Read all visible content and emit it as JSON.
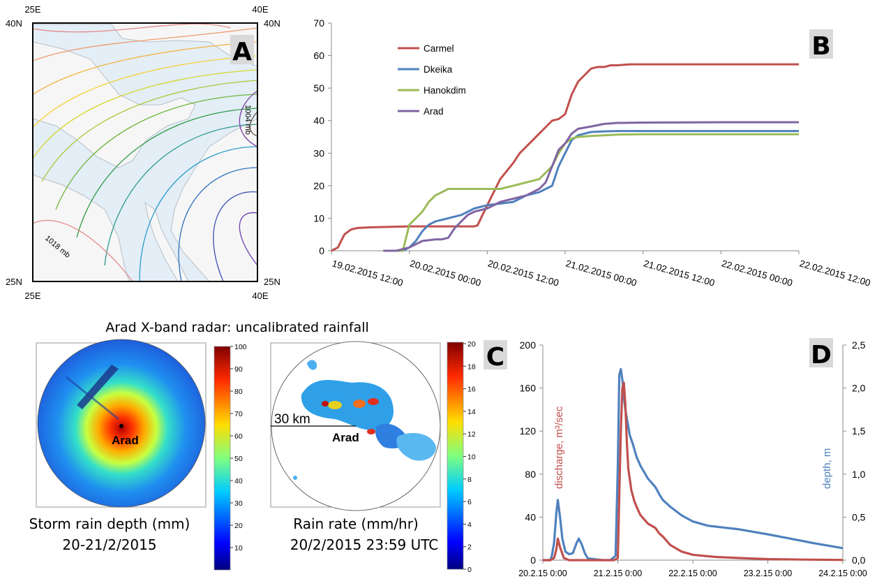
{
  "panelA": {
    "letter": "A",
    "corner_labels": {
      "tl_top": "25E",
      "tr_top": "40E",
      "tl_left": "40N",
      "tr_right": "40N",
      "bl_left": "25N",
      "br_right": "25N",
      "bl_bottom": "25E",
      "br_bottom": "40E"
    },
    "contour_labels": [
      "1004 mb",
      "1018 mb"
    ],
    "colors": {
      "land": "#e3eef7",
      "sea": "#f6f6f6",
      "frame": "#000000"
    }
  },
  "chart_data": [
    {
      "id": "B",
      "type": "line",
      "title": "",
      "xlabel": "",
      "ylabel": "",
      "ylim": [
        0,
        70
      ],
      "yticks": [
        "0",
        "10",
        "20",
        "30",
        "40",
        "50",
        "60",
        "70"
      ],
      "xticks": [
        "19.02.2015 12:00",
        "20.02.2015 00:00",
        "20.02.2015 12:00",
        "21.02.2015 00:00",
        "21.02.2015 12:00",
        "22.02.2015 00:00",
        "22.02.2015 12:00"
      ],
      "legend_position": "top-left",
      "series": [
        {
          "name": "Carmel",
          "color": "#c0504d",
          "x_hours": [
            0,
            1,
            2,
            3,
            4,
            6,
            8,
            12,
            16,
            18,
            20,
            22,
            22.5,
            24,
            26,
            28,
            29,
            30,
            31,
            32,
            33,
            34,
            35,
            36,
            37,
            38,
            39,
            40,
            41,
            42,
            43,
            44,
            46,
            48,
            52,
            60,
            72
          ],
          "values": [
            0,
            1,
            5,
            6.5,
            7,
            7.2,
            7.3,
            7.5,
            7.5,
            7.5,
            7.5,
            7.5,
            7.8,
            14,
            22,
            27,
            30,
            32,
            34,
            36,
            38,
            40,
            40.5,
            42,
            48,
            52,
            54,
            56,
            56.5,
            56.5,
            57,
            57,
            57.3,
            57.3,
            57.3,
            57.3,
            57.3
          ]
        },
        {
          "name": "Dkeika",
          "color": "#4f81bd",
          "x_hours": [
            8,
            10,
            11,
            12,
            13,
            14,
            15,
            16,
            18,
            20,
            22,
            24,
            26,
            28,
            29,
            30,
            32,
            33,
            34,
            35,
            36,
            37,
            38,
            39,
            40,
            42,
            44,
            46,
            48,
            52,
            60,
            72
          ],
          "values": [
            0,
            0,
            0,
            1,
            3,
            6,
            8,
            9,
            10,
            11,
            13,
            14,
            14.5,
            15,
            16,
            17,
            18,
            19,
            20,
            26,
            30,
            34,
            35.5,
            36,
            36.5,
            36.7,
            36.8,
            36.8,
            36.8,
            36.8,
            36.8,
            36.8
          ]
        },
        {
          "name": "Hanokdim",
          "color": "#9bbb59",
          "x_hours": [
            8,
            10,
            11,
            12,
            13,
            14,
            15,
            16,
            17,
            18,
            20,
            22,
            24,
            26,
            28,
            30,
            32,
            33,
            34,
            35,
            36,
            37,
            38,
            40,
            42,
            44,
            48,
            60,
            72
          ],
          "values": [
            0,
            0,
            0,
            8,
            10,
            12,
            15,
            17,
            18,
            19,
            19,
            19,
            19,
            19,
            20,
            21,
            22,
            24,
            26,
            30,
            33,
            34.5,
            35,
            35.3,
            35.5,
            35.7,
            35.8,
            35.8,
            35.8
          ]
        },
        {
          "name": "Arad",
          "color": "#8064a2",
          "x_hours": [
            8,
            10,
            12,
            14,
            16,
            17,
            18,
            19,
            20,
            21,
            22,
            24,
            26,
            28,
            30,
            32,
            33,
            34,
            35,
            36,
            37,
            38,
            40,
            42,
            44,
            48,
            60,
            72
          ],
          "values": [
            0,
            0,
            1,
            3,
            3.5,
            3.5,
            4,
            7,
            9,
            11,
            12,
            13,
            15,
            16,
            17,
            19,
            21,
            26,
            31,
            33,
            36,
            37.5,
            38.2,
            39,
            39.3,
            39.4,
            39.5,
            39.5
          ]
        }
      ]
    },
    {
      "id": "D",
      "type": "line",
      "title": "",
      "xlabel": "",
      "ylabel": "discharge, m³/sec",
      "y2label": "depth, m",
      "ylim": [
        0,
        200
      ],
      "y2lim": [
        0,
        2.5
      ],
      "yticks": [
        "0",
        "40",
        "80",
        "120",
        "160",
        "200"
      ],
      "y2ticks": [
        "0,0",
        "0,5",
        "1,0",
        "1,5",
        "2,0",
        "2,5"
      ],
      "xticks": [
        "20.2.15 0:00",
        "21.2.15 0:00",
        "22.2.15 0:00",
        "23.2.15 0:00",
        "24.2.15 0:00"
      ],
      "series": [
        {
          "name": "discharge",
          "axis": "left",
          "color": "#c0504d",
          "x_days": [
            0,
            0.1,
            0.15,
            0.18,
            0.2,
            0.23,
            0.28,
            0.35,
            0.5,
            0.8,
            0.95,
            1.0,
            1.02,
            1.04,
            1.06,
            1.08,
            1.1,
            1.12,
            1.14,
            1.18,
            1.22,
            1.26,
            1.3,
            1.4,
            1.5,
            1.55,
            1.6,
            1.7,
            1.85,
            2.0,
            2.3,
            2.6,
            3.0,
            3.5,
            4.0
          ],
          "values": [
            0,
            0,
            2,
            10,
            20,
            12,
            2,
            0,
            0,
            0,
            0,
            2,
            60,
            120,
            160,
            165,
            145,
            110,
            85,
            65,
            55,
            48,
            42,
            34,
            30,
            25,
            22,
            14,
            8,
            5,
            3,
            2,
            1,
            0.5,
            0.2
          ]
        },
        {
          "name": "depth",
          "axis": "right",
          "color": "#4f81bd",
          "x_days": [
            0,
            0.1,
            0.12,
            0.15,
            0.18,
            0.2,
            0.23,
            0.26,
            0.3,
            0.35,
            0.4,
            0.45,
            0.48,
            0.52,
            0.56,
            0.6,
            0.8,
            0.9,
            0.97,
            1.0,
            1.02,
            1.04,
            1.06,
            1.08,
            1.1,
            1.13,
            1.16,
            1.2,
            1.25,
            1.3,
            1.4,
            1.5,
            1.55,
            1.6,
            1.7,
            1.85,
            2.0,
            2.2,
            2.4,
            2.6,
            2.8,
            3.0,
            3.3,
            3.6,
            4.0
          ],
          "values": [
            0,
            0,
            0.05,
            0.2,
            0.55,
            0.7,
            0.5,
            0.25,
            0.1,
            0.07,
            0.08,
            0.2,
            0.25,
            0.18,
            0.08,
            0.02,
            0.0,
            0.0,
            0.05,
            1.1,
            2.15,
            2.22,
            2.1,
            1.9,
            1.75,
            1.6,
            1.45,
            1.35,
            1.2,
            1.1,
            0.95,
            0.85,
            0.77,
            0.7,
            0.62,
            0.52,
            0.45,
            0.4,
            0.38,
            0.36,
            0.33,
            0.3,
            0.25,
            0.2,
            0.14
          ]
        }
      ]
    }
  ],
  "panelC": {
    "letter": "C",
    "title": "Arad X-band radar: uncalibrated  rainfall",
    "left": {
      "caption_line1": "Storm rain depth (mm)",
      "caption_line2": "20-21/2/2015",
      "city": "Arad",
      "colorbar_ticks": [
        "100",
        "90",
        "80",
        "70",
        "60",
        "50",
        "40",
        "30",
        "20",
        "10"
      ],
      "colorbar_max": 100
    },
    "right": {
      "caption_line1": "Rain rate (mm/hr)",
      "caption_line2": "20/2/2015 23:59 UTC",
      "city": "Arad",
      "scale_label": "30 km",
      "colorbar_ticks": [
        "20",
        "18",
        "16",
        "14",
        "12",
        "10",
        "8",
        "6",
        "4",
        "2",
        "0"
      ],
      "colorbar_max": 20
    }
  },
  "panelB_letter": "B",
  "panelD_letter": "D"
}
